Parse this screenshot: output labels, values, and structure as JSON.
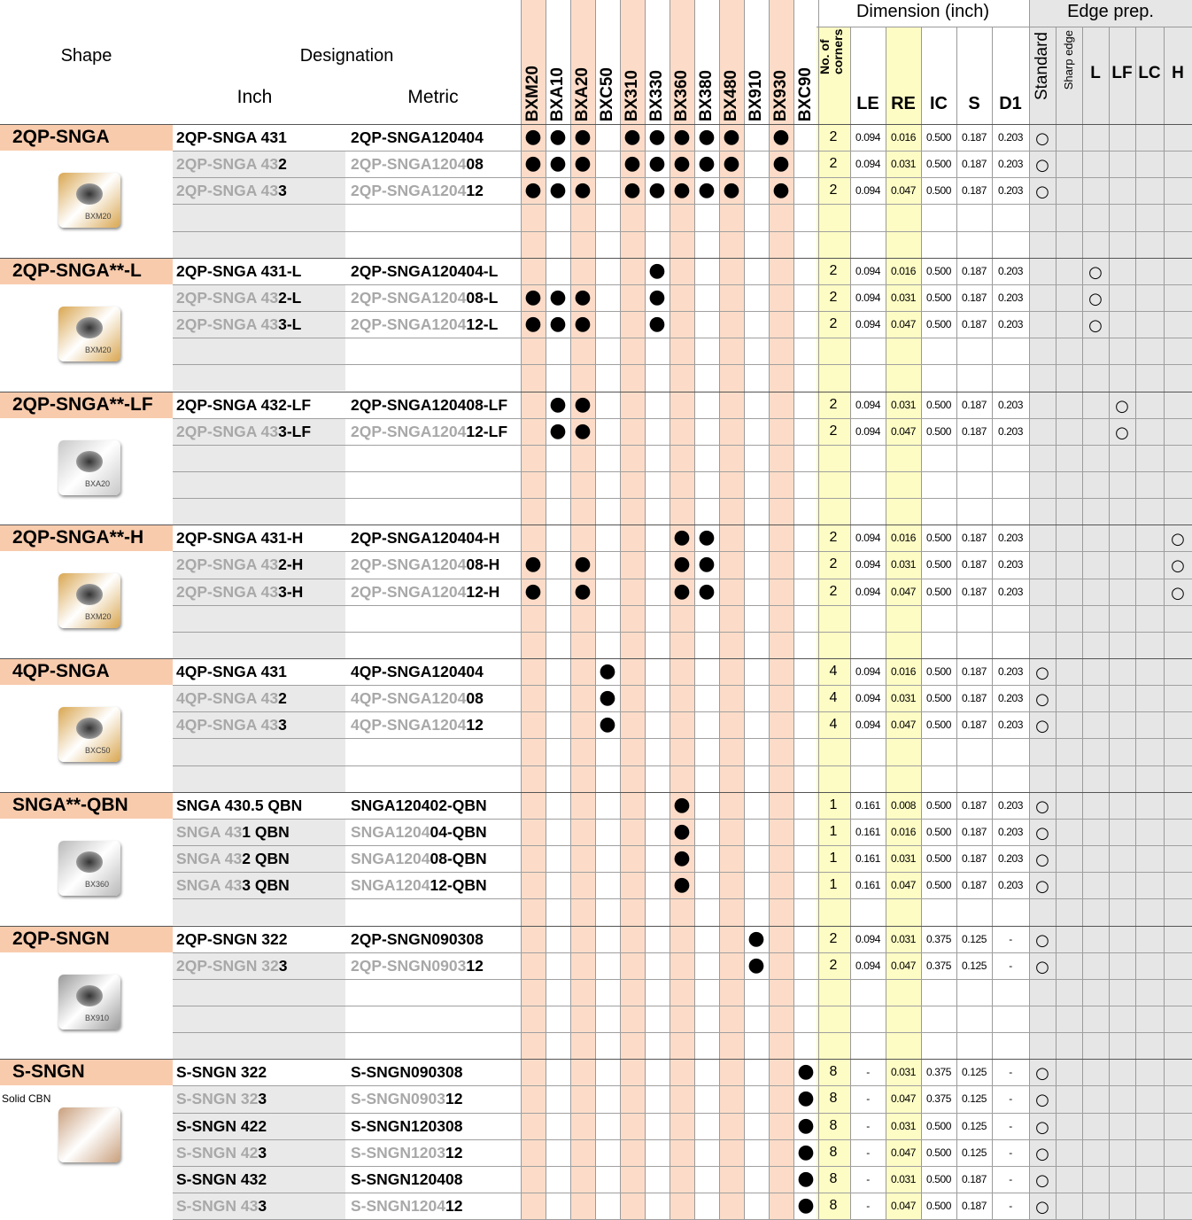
{
  "header": {
    "shape": "Shape",
    "designation": "Designation",
    "inch": "Inch",
    "metric": "Metric",
    "grades": [
      "BXM20",
      "BXA10",
      "BXA20",
      "BXC50",
      "BX310",
      "BX330",
      "BX360",
      "BX380",
      "BX480",
      "BX910",
      "BX930",
      "BXC90"
    ],
    "corners": "No. of corners",
    "dimension": "Dimension (inch)",
    "dimension_columns": [
      "LE",
      "RE",
      "IC",
      "S",
      "D1"
    ],
    "edge_prep": "Edge prep.",
    "edge_columns": [
      "Standard",
      "Sharp edge",
      "L",
      "LF",
      "LC",
      "H"
    ]
  },
  "symbols": {
    "available": "●",
    "edge": "○"
  },
  "groups": [
    {
      "name": "2QP-SNGA",
      "image_label": "BXM20",
      "image_color": "#d9a650",
      "rows": [
        {
          "inch": [
            "2QP-SNGA 431"
          ],
          "metric": [
            "2QP-SNGA120404"
          ],
          "grades": [
            "BXM20",
            "BXA10",
            "BXA20",
            "BX310",
            "BX330",
            "BX360",
            "BX380",
            "BX480",
            "BX930"
          ],
          "corners": 2,
          "dims": [
            "0.094",
            "0.016",
            "0.500",
            "0.187",
            "0.203"
          ],
          "edge": "Standard"
        },
        {
          "inch": [
            "2QP-SNGA 43",
            "2"
          ],
          "metric": [
            "2QP-SNGA1204",
            "08"
          ],
          "grades": [
            "BXM20",
            "BXA10",
            "BXA20",
            "BX310",
            "BX330",
            "BX360",
            "BX380",
            "BX480",
            "BX930"
          ],
          "corners": 2,
          "dims": [
            "0.094",
            "0.031",
            "0.500",
            "0.187",
            "0.203"
          ],
          "edge": "Standard"
        },
        {
          "inch": [
            "2QP-SNGA 43",
            "3"
          ],
          "metric": [
            "2QP-SNGA1204",
            "12"
          ],
          "grades": [
            "BXM20",
            "BXA10",
            "BXA20",
            "BX310",
            "BX330",
            "BX360",
            "BX380",
            "BX480",
            "BX930"
          ],
          "corners": 2,
          "dims": [
            "0.094",
            "0.047",
            "0.500",
            "0.187",
            "0.203"
          ],
          "edge": "Standard"
        }
      ]
    },
    {
      "name": "2QP-SNGA**-L",
      "image_label": "BXM20",
      "image_color": "#d9a650",
      "rows": [
        {
          "inch": [
            "2QP-SNGA 431-L"
          ],
          "metric": [
            "2QP-SNGA120404-L"
          ],
          "grades": [
            "BX330"
          ],
          "corners": 2,
          "dims": [
            "0.094",
            "0.016",
            "0.500",
            "0.187",
            "0.203"
          ],
          "edge": "L"
        },
        {
          "inch": [
            "2QP-SNGA 43",
            "2-L"
          ],
          "metric": [
            "2QP-SNGA1204",
            "08-L"
          ],
          "grades": [
            "BXM20",
            "BXA10",
            "BXA20",
            "BX330"
          ],
          "corners": 2,
          "dims": [
            "0.094",
            "0.031",
            "0.500",
            "0.187",
            "0.203"
          ],
          "edge": "L"
        },
        {
          "inch": [
            "2QP-SNGA 43",
            "3-L"
          ],
          "metric": [
            "2QP-SNGA1204",
            "12-L"
          ],
          "grades": [
            "BXM20",
            "BXA10",
            "BXA20",
            "BX330"
          ],
          "corners": 2,
          "dims": [
            "0.094",
            "0.047",
            "0.500",
            "0.187",
            "0.203"
          ],
          "edge": "L"
        }
      ]
    },
    {
      "name": "2QP-SNGA**-LF",
      "image_label": "BXA20",
      "image_color": "#c8c8c8",
      "rows": [
        {
          "inch": [
            "2QP-SNGA 432-LF"
          ],
          "metric": [
            "2QP-SNGA120408-LF"
          ],
          "grades": [
            "BXA10",
            "BXA20"
          ],
          "corners": 2,
          "dims": [
            "0.094",
            "0.031",
            "0.500",
            "0.187",
            "0.203"
          ],
          "edge": "LF"
        },
        {
          "inch": [
            "2QP-SNGA 43",
            "3-LF"
          ],
          "metric": [
            "2QP-SNGA1204",
            "12-LF"
          ],
          "grades": [
            "BXA10",
            "BXA20"
          ],
          "corners": 2,
          "dims": [
            "0.094",
            "0.047",
            "0.500",
            "0.187",
            "0.203"
          ],
          "edge": "LF"
        }
      ]
    },
    {
      "name": "2QP-SNGA**-H",
      "image_label": "BXM20",
      "image_color": "#d9a650",
      "rows": [
        {
          "inch": [
            "2QP-SNGA 431-H"
          ],
          "metric": [
            "2QP-SNGA120404-H"
          ],
          "grades": [
            "BX360",
            "BX380"
          ],
          "corners": 2,
          "dims": [
            "0.094",
            "0.016",
            "0.500",
            "0.187",
            "0.203"
          ],
          "edge": "H"
        },
        {
          "inch": [
            "2QP-SNGA 43",
            "2-H"
          ],
          "metric": [
            "2QP-SNGA1204",
            "08-H"
          ],
          "grades": [
            "BXM20",
            "BXA20",
            "BX360",
            "BX380"
          ],
          "corners": 2,
          "dims": [
            "0.094",
            "0.031",
            "0.500",
            "0.187",
            "0.203"
          ],
          "edge": "H"
        },
        {
          "inch": [
            "2QP-SNGA 43",
            "3-H"
          ],
          "metric": [
            "2QP-SNGA1204",
            "12-H"
          ],
          "grades": [
            "BXM20",
            "BXA20",
            "BX360",
            "BX380"
          ],
          "corners": 2,
          "dims": [
            "0.094",
            "0.047",
            "0.500",
            "0.187",
            "0.203"
          ],
          "edge": "H"
        }
      ]
    },
    {
      "name": "4QP-SNGA",
      "image_label": "BXC50",
      "image_color": "#d9a650",
      "rows": [
        {
          "inch": [
            "4QP-SNGA 431"
          ],
          "metric": [
            "4QP-SNGA120404"
          ],
          "grades": [
            "BXC50"
          ],
          "corners": 4,
          "dims": [
            "0.094",
            "0.016",
            "0.500",
            "0.187",
            "0.203"
          ],
          "edge": "Standard"
        },
        {
          "inch": [
            "4QP-SNGA 43",
            "2"
          ],
          "metric": [
            "4QP-SNGA1204",
            "08"
          ],
          "grades": [
            "BXC50"
          ],
          "corners": 4,
          "dims": [
            "0.094",
            "0.031",
            "0.500",
            "0.187",
            "0.203"
          ],
          "edge": "Standard"
        },
        {
          "inch": [
            "4QP-SNGA 43",
            "3"
          ],
          "metric": [
            "4QP-SNGA1204",
            "12"
          ],
          "grades": [
            "BXC50"
          ],
          "corners": 4,
          "dims": [
            "0.094",
            "0.047",
            "0.500",
            "0.187",
            "0.203"
          ],
          "edge": "Standard"
        }
      ]
    },
    {
      "name": "SNGA**-QBN",
      "image_label": "BX360",
      "image_color": "#b9b9b9",
      "rows": [
        {
          "inch": [
            "SNGA 430.5 QBN"
          ],
          "metric": [
            "SNGA120402-QBN"
          ],
          "grades": [
            "BX360"
          ],
          "corners": 1,
          "dims": [
            "0.161",
            "0.008",
            "0.500",
            "0.187",
            "0.203"
          ],
          "edge": "Standard"
        },
        {
          "inch": [
            "SNGA 43",
            "1 QBN"
          ],
          "metric": [
            "SNGA1204",
            "04-QBN"
          ],
          "grades": [
            "BX360"
          ],
          "corners": 1,
          "dims": [
            "0.161",
            "0.016",
            "0.500",
            "0.187",
            "0.203"
          ],
          "edge": "Standard"
        },
        {
          "inch": [
            "SNGA 43",
            "2 QBN"
          ],
          "metric": [
            "SNGA1204",
            "08-QBN"
          ],
          "grades": [
            "BX360"
          ],
          "corners": 1,
          "dims": [
            "0.161",
            "0.031",
            "0.500",
            "0.187",
            "0.203"
          ],
          "edge": "Standard"
        },
        {
          "inch": [
            "SNGA 43",
            "3 QBN"
          ],
          "metric": [
            "SNGA1204",
            "12-QBN"
          ],
          "grades": [
            "BX360"
          ],
          "corners": 1,
          "dims": [
            "0.161",
            "0.047",
            "0.500",
            "0.187",
            "0.203"
          ],
          "edge": "Standard"
        }
      ]
    },
    {
      "name": "2QP-SNGN",
      "image_label": "BX910",
      "image_color": "#9a9a9a",
      "rows": [
        {
          "inch": [
            "2QP-SNGN 322"
          ],
          "metric": [
            "2QP-SNGN090308"
          ],
          "grades": [
            "BX910"
          ],
          "corners": 2,
          "dims": [
            "0.094",
            "0.031",
            "0.375",
            "0.125",
            "-"
          ],
          "edge": "Standard"
        },
        {
          "inch": [
            "2QP-SNGN 32",
            "3"
          ],
          "metric": [
            "2QP-SNGN0903",
            "12"
          ],
          "grades": [
            "BX910"
          ],
          "corners": 2,
          "dims": [
            "0.094",
            "0.047",
            "0.375",
            "0.125",
            "-"
          ],
          "edge": "Standard"
        }
      ]
    },
    {
      "name": "S-SNGN",
      "note": "Solid CBN",
      "image_color": "#c99f7c",
      "rows": [
        {
          "inch": [
            "S-SNGN 322"
          ],
          "metric": [
            "S-SNGN090308"
          ],
          "grades": [
            "BXC90"
          ],
          "corners": 8,
          "dims": [
            "-",
            "0.031",
            "0.375",
            "0.125",
            "-"
          ],
          "edge": "Standard"
        },
        {
          "inch": [
            "S-SNGN 32",
            "3"
          ],
          "metric": [
            "S-SNGN0903",
            "12"
          ],
          "grades": [
            "BXC90"
          ],
          "corners": 8,
          "dims": [
            "-",
            "0.047",
            "0.375",
            "0.125",
            "-"
          ],
          "edge": "Standard"
        },
        {
          "inch": [
            "S-SNGN 422"
          ],
          "metric": [
            "S-SNGN120308"
          ],
          "grades": [
            "BXC90"
          ],
          "corners": 8,
          "dims": [
            "-",
            "0.031",
            "0.500",
            "0.125",
            "-"
          ],
          "edge": "Standard"
        },
        {
          "inch": [
            "S-SNGN 42",
            "3"
          ],
          "metric": [
            "S-SNGN1203",
            "12"
          ],
          "grades": [
            "BXC90"
          ],
          "corners": 8,
          "dims": [
            "-",
            "0.047",
            "0.500",
            "0.125",
            "-"
          ],
          "edge": "Standard"
        },
        {
          "inch": [
            "S-SNGN 432"
          ],
          "metric": [
            "S-SNGN120408"
          ],
          "grades": [
            "BXC90"
          ],
          "corners": 8,
          "dims": [
            "-",
            "0.031",
            "0.500",
            "0.187",
            "-"
          ],
          "edge": "Standard"
        },
        {
          "inch": [
            "S-SNGN 43",
            "3"
          ],
          "metric": [
            "S-SNGN1204",
            "12"
          ],
          "grades": [
            "BXC90"
          ],
          "corners": 8,
          "dims": [
            "-",
            "0.047",
            "0.500",
            "0.187",
            "-"
          ],
          "edge": "Standard"
        }
      ]
    }
  ]
}
